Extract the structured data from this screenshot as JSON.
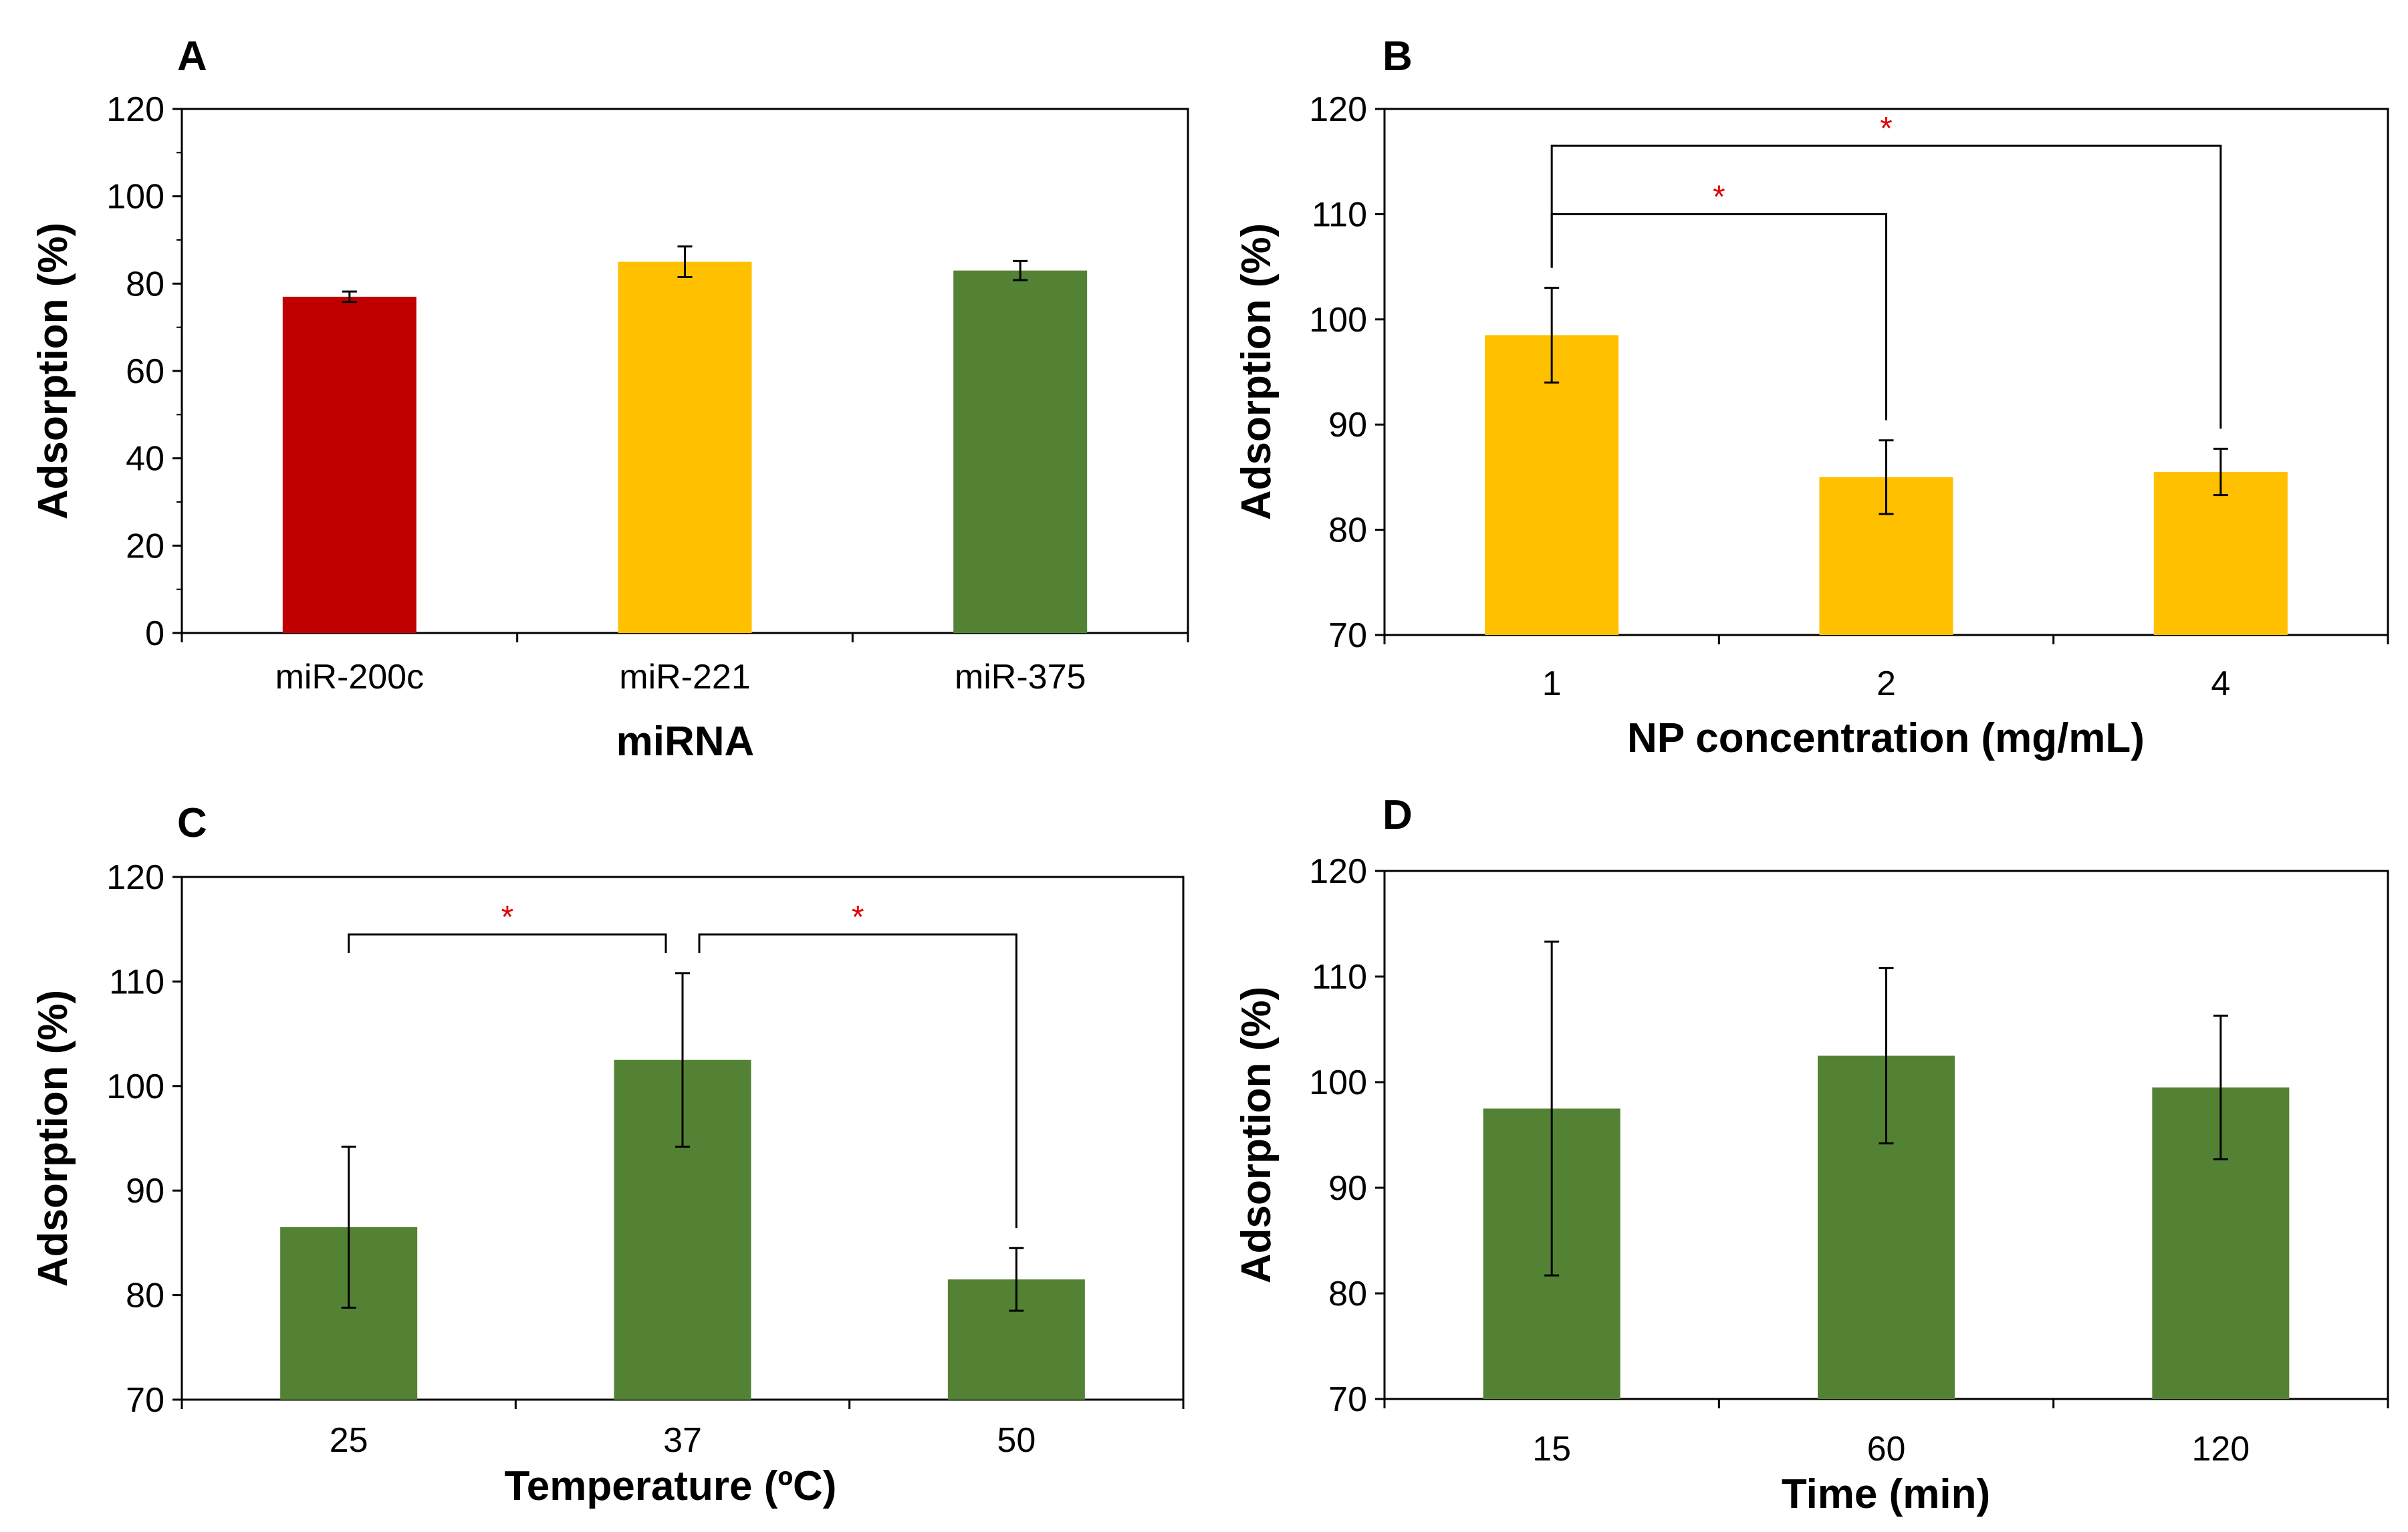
{
  "colors": {
    "red": "#c00000",
    "yellow": "#ffc000",
    "green": "#548235"
  },
  "chart_data": [
    {
      "panel": "A",
      "type": "bar",
      "xlabel": "miRNA",
      "ylabel": "Adsorption (%)",
      "ylim": [
        0,
        120
      ],
      "yticks": [
        0,
        20,
        40,
        60,
        80,
        100,
        120
      ],
      "ytick_labels": [
        "0",
        "20",
        "40",
        "60",
        "80",
        "100",
        "120"
      ],
      "categories": [
        "miR-200c",
        "miR-221",
        "miR-375"
      ],
      "values": [
        77,
        85,
        83
      ],
      "errors": [
        1.2,
        3.5,
        2.2
      ],
      "bar_colors": [
        "#c00000",
        "#ffc000",
        "#548235"
      ],
      "significance": []
    },
    {
      "panel": "B",
      "type": "bar",
      "xlabel": "NP concentration (mg/mL)",
      "ylabel": "Adsorption (%)",
      "ylim": [
        70,
        120
      ],
      "yticks": [
        70,
        80,
        90,
        100,
        110,
        120
      ],
      "ytick_labels": [
        "70",
        "80",
        "90",
        "100",
        "110",
        "120"
      ],
      "categories": [
        "1",
        "2",
        "4"
      ],
      "values": [
        98.5,
        85,
        85.5
      ],
      "errors": [
        4.5,
        3.5,
        2.2
      ],
      "bar_colors": [
        "#ffc000",
        "#ffc000",
        "#ffc000"
      ],
      "significance": [
        {
          "from": 0,
          "to": 1,
          "level": 110,
          "label": "*"
        },
        {
          "from": 0,
          "to": 2,
          "level": 116.5,
          "label": "*"
        }
      ]
    },
    {
      "panel": "C",
      "type": "bar",
      "xlabel": "Temperature (ºC)",
      "ylabel": "Adsorption (%)",
      "ylim": [
        70,
        120
      ],
      "yticks": [
        70,
        80,
        90,
        100,
        110,
        120
      ],
      "ytick_labels": [
        "70",
        "80",
        "90",
        "100",
        "110",
        "120"
      ],
      "categories": [
        "25",
        "37",
        "50"
      ],
      "values": [
        86.5,
        102.5,
        81.5
      ],
      "errors": [
        7.7,
        8.3,
        3.0
      ],
      "bar_colors": [
        "#548235",
        "#548235",
        "#548235"
      ],
      "significance": [
        {
          "from": 0,
          "to": 1,
          "level": 114.5,
          "label": "*"
        },
        {
          "from": 1,
          "to": 2,
          "level": 114.5,
          "label": "*"
        }
      ]
    },
    {
      "panel": "D",
      "type": "bar",
      "xlabel": "Time (min)",
      "ylabel": "Adsorption (%)",
      "ylim": [
        70,
        120
      ],
      "yticks": [
        70,
        80,
        90,
        100,
        110,
        120
      ],
      "ytick_labels": [
        "70",
        "80",
        "90",
        "100",
        "110",
        "120"
      ],
      "categories": [
        "15",
        "60",
        "120"
      ],
      "values": [
        97.5,
        102.5,
        99.5
      ],
      "errors": [
        15.8,
        8.3,
        6.8
      ],
      "bar_colors": [
        "#548235",
        "#548235",
        "#548235"
      ],
      "significance": []
    }
  ]
}
